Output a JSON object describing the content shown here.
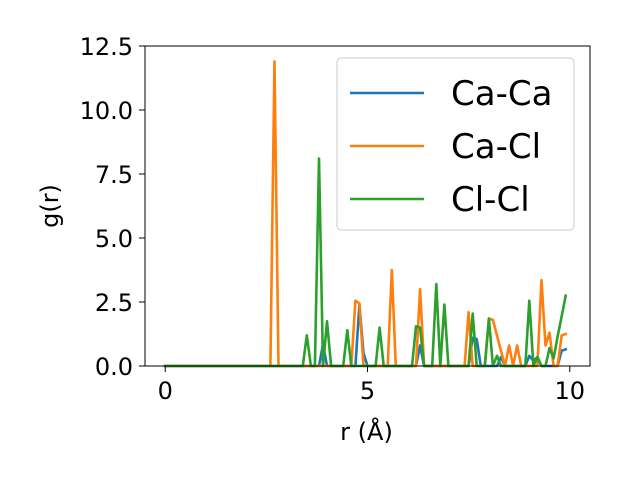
{
  "chart_data": {
    "type": "line",
    "xlabel": "r (Å)",
    "ylabel": "g(r)",
    "xlim": [
      -0.5,
      10.5
    ],
    "ylim": [
      0,
      12.5
    ],
    "xticks": [
      0,
      5,
      10
    ],
    "xtick_labels": [
      "0",
      "5",
      "10"
    ],
    "yticks": [
      0.0,
      2.5,
      5.0,
      7.5,
      10.0,
      12.5
    ],
    "ytick_labels": [
      "0.0",
      "2.5",
      "5.0",
      "7.5",
      "10.0",
      "12.5"
    ],
    "grid": false,
    "legend_position": "upper right",
    "series": [
      {
        "name": "Ca-Ca",
        "color": "#1f77b4",
        "x": [
          0.0,
          3.8,
          3.9,
          4.0,
          4.7,
          4.8,
          4.9,
          5.0,
          6.2,
          6.3,
          6.4,
          7.5,
          7.6,
          7.7,
          7.8,
          8.2,
          8.3,
          8.4,
          8.9,
          9.0,
          9.1,
          9.2,
          9.3,
          9.7,
          9.8,
          9.9
        ],
        "values": [
          0.0,
          0.0,
          0.85,
          0.0,
          0.0,
          2.4,
          0.5,
          0.0,
          0.0,
          0.8,
          0.0,
          0.0,
          1.1,
          1.05,
          0.0,
          0.0,
          0.35,
          0.0,
          0.0,
          0.4,
          0.2,
          0.35,
          0.0,
          0.0,
          0.6,
          0.65
        ]
      },
      {
        "name": "Ca-Cl",
        "color": "#ff7f0e",
        "x": [
          0.0,
          2.6,
          2.7,
          2.8,
          4.6,
          4.7,
          4.8,
          4.9,
          5.5,
          5.6,
          5.7,
          6.2,
          6.3,
          6.4,
          7.4,
          7.5,
          7.6,
          7.9,
          8.0,
          8.1,
          8.4,
          8.5,
          8.6,
          8.7,
          8.8,
          9.2,
          9.3,
          9.4,
          9.5,
          9.6,
          9.7,
          9.8,
          9.9
        ],
        "values": [
          0.0,
          0.0,
          11.9,
          0.0,
          0.0,
          2.55,
          2.45,
          0.0,
          0.0,
          3.75,
          0.0,
          0.0,
          3.0,
          0.0,
          0.0,
          2.1,
          0.0,
          0.0,
          1.85,
          1.8,
          0.0,
          0.8,
          0.0,
          0.8,
          0.0,
          0.0,
          3.35,
          0.8,
          1.3,
          0.0,
          0.0,
          1.2,
          1.25
        ]
      },
      {
        "name": "Cl-Cl",
        "color": "#2ca02c",
        "x": [
          0.0,
          3.4,
          3.5,
          3.6,
          3.7,
          3.8,
          3.9,
          4.0,
          4.1,
          4.4,
          4.5,
          4.6,
          5.2,
          5.3,
          5.4,
          6.1,
          6.2,
          6.3,
          6.4,
          6.6,
          6.7,
          6.8,
          6.9,
          7.0,
          7.1,
          7.5,
          7.6,
          7.7,
          7.8,
          7.9,
          8.0,
          8.1,
          8.2,
          8.3,
          8.4,
          8.9,
          9.0,
          9.1,
          9.2,
          9.3,
          9.4,
          9.5,
          9.6,
          9.7,
          9.8,
          9.9
        ],
        "values": [
          0.0,
          0.0,
          1.2,
          0.0,
          0.0,
          8.1,
          0.0,
          1.75,
          0.0,
          0.0,
          1.4,
          0.0,
          0.0,
          1.5,
          0.0,
          0.0,
          1.55,
          1.5,
          0.0,
          0.0,
          3.2,
          0.0,
          2.4,
          0.0,
          0.0,
          0.0,
          2.05,
          0.0,
          0.0,
          0.0,
          1.85,
          0.0,
          0.4,
          0.0,
          0.0,
          0.0,
          2.55,
          0.0,
          0.35,
          0.0,
          0.0,
          0.7,
          0.3,
          1.15,
          1.95,
          2.75
        ]
      }
    ]
  }
}
